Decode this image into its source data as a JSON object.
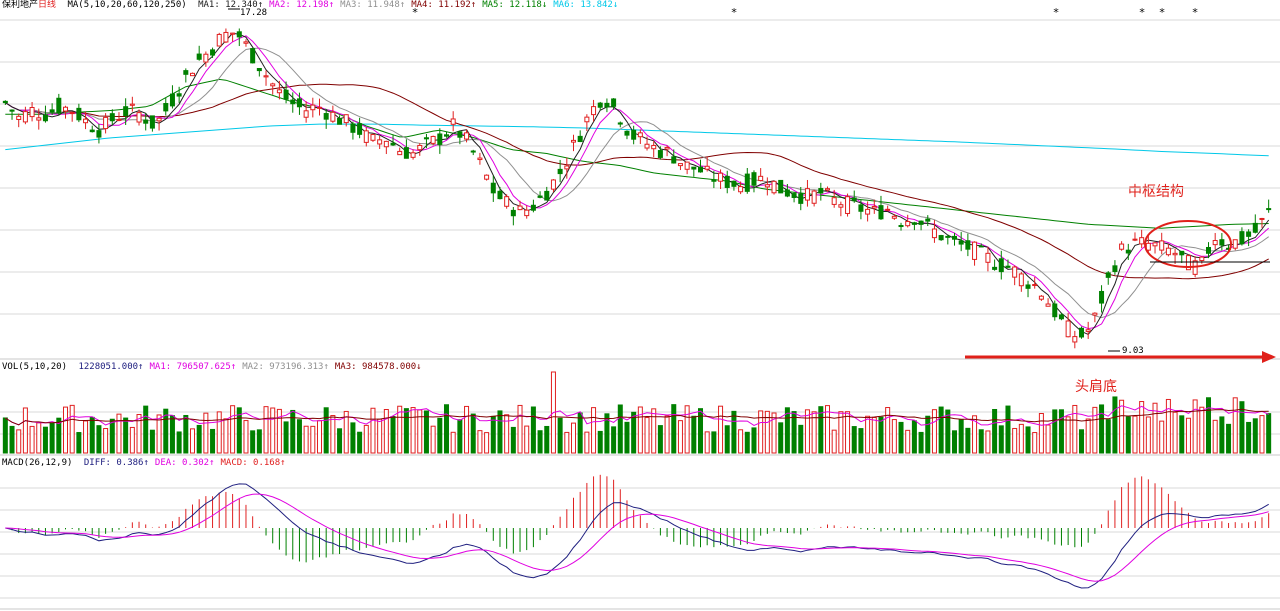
{
  "colors": {
    "up": "#e02020",
    "down": "#008000",
    "ma1": "#202020",
    "ma2": "#e000e0",
    "ma3": "#909090",
    "ma4": "#800000",
    "ma5": "#008000",
    "ma6": "#00c8e8",
    "vol_ma1": "#e000e0",
    "vol_ma3": "#800000",
    "diff": "#202080",
    "dea": "#e000e0",
    "annotation": "#e0201a",
    "grid": "#d8d8d8"
  },
  "header": {
    "name": "保利地产",
    "period": "日线",
    "ma_params": "MA(5,10,20,60,120,250)",
    "ma": [
      {
        "label": "MA1: 12.340↑",
        "color": "#202020"
      },
      {
        "label": "MA2: 12.198↑",
        "color": "#e000e0"
      },
      {
        "label": "MA3: 11.948↑",
        "color": "#909090"
      },
      {
        "label": "MA4: 11.192↑",
        "color": "#800000"
      },
      {
        "label": "MA5: 12.118↓",
        "color": "#008000"
      },
      {
        "label": "MA6: 13.842↓",
        "color": "#00c8e8"
      }
    ]
  },
  "vol_header": {
    "params": "VOL(5,10,20)",
    "items": [
      {
        "label": "1228051.000↑",
        "color": "#202080"
      },
      {
        "label": "MA1: 796507.625↑",
        "color": "#e000e0"
      },
      {
        "label": "MA2: 973196.313↑",
        "color": "#909090"
      },
      {
        "label": "MA3: 984578.000↓",
        "color": "#800000"
      }
    ]
  },
  "macd_header": {
    "params": "MACD(26,12,9)",
    "items": [
      {
        "label": "DIFF: 0.386↑",
        "color": "#202080"
      },
      {
        "label": "DEA: 0.302↑",
        "color": "#e000e0"
      },
      {
        "label": "MACD: 0.168↑",
        "color": "#e02020"
      }
    ]
  },
  "annotations": {
    "center": "中枢结构",
    "bottom": "头肩底"
  },
  "price_labels": {
    "high": "17.28",
    "low": "9.03"
  },
  "chart_data": {
    "type": "candlestick",
    "price_range": [
      8.7,
      17.5
    ],
    "high": 17.28,
    "low": 9.03,
    "close_series": [
      15.2,
      14.8,
      15.0,
      14.9,
      15.1,
      15.0,
      14.7,
      14.5,
      14.8,
      15.0,
      14.9,
      14.6,
      15.1,
      15.7,
      16.2,
      16.5,
      16.9,
      17.0,
      16.5,
      16.0,
      15.5,
      15.2,
      15.0,
      15.1,
      14.9,
      14.7,
      14.5,
      14.2,
      14.3,
      14.0,
      13.9,
      14.1,
      14.3,
      14.6,
      14.2,
      13.6,
      12.9,
      12.6,
      12.4,
      12.6,
      13.0,
      13.5,
      14.2,
      14.9,
      15.4,
      15.0,
      14.4,
      14.2,
      14.0,
      13.9,
      13.6,
      13.5,
      13.3,
      13.2,
      13.1,
      13.2,
      13.3,
      13.0,
      12.9,
      12.8,
      12.9,
      12.7,
      12.6,
      12.5,
      12.4,
      12.5,
      12.2,
      12.3,
      12.0,
      11.8,
      11.6,
      11.5,
      11.3,
      11.1,
      11.0,
      10.7,
      10.5,
      10.0,
      9.5,
      9.2,
      9.5,
      10.5,
      11.4,
      11.6,
      11.6,
      11.5,
      11.4,
      11.1,
      11.0,
      11.8,
      11.6,
      11.7,
      11.9,
      12.4
    ],
    "ma_lines": {
      "MA5": [
        14.9,
        14.9,
        14.95,
        15.0,
        15.1,
        15.6,
        15.8,
        15.5,
        15.2,
        15.0,
        14.6,
        14.3,
        14.5,
        14.3,
        14.0,
        13.9,
        13.7,
        13.6,
        13.4,
        13.3,
        13.2,
        13.0,
        12.9,
        12.8,
        12.7,
        12.6,
        12.5,
        12.4,
        12.3,
        12.2,
        12.1,
        12.05,
        12.0,
        12.05,
        12.1,
        12.12
      ],
      "MA6": [
        14.0,
        14.15,
        14.3,
        14.4,
        14.5,
        14.6,
        14.65,
        14.65,
        14.62,
        14.6,
        14.58,
        14.55,
        14.5,
        14.45,
        14.4,
        14.35,
        14.3,
        14.25,
        14.2,
        14.14,
        14.08,
        14.02,
        13.95,
        13.9,
        13.842
      ]
    }
  }
}
